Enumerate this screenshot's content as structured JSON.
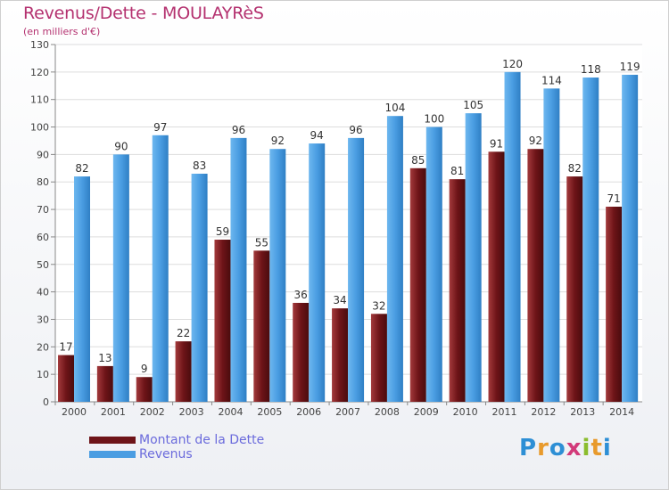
{
  "header": {
    "title": "Revenus/Dette - MOULAYRèS",
    "subtitle": "(en milliers d'€)"
  },
  "chart_data": {
    "type": "bar",
    "categories": [
      "2000",
      "2001",
      "2002",
      "2003",
      "2004",
      "2005",
      "2006",
      "2007",
      "2008",
      "2009",
      "2010",
      "2011",
      "2012",
      "2013",
      "2014"
    ],
    "series": [
      {
        "name": "Montant de la Dette",
        "color": "#6e1418",
        "values": [
          17,
          13,
          9,
          22,
          59,
          55,
          36,
          34,
          32,
          85,
          81,
          91,
          92,
          82,
          71
        ]
      },
      {
        "name": "Revenus",
        "color": "#4a9de2",
        "values": [
          82,
          90,
          97,
          83,
          96,
          92,
          94,
          96,
          104,
          100,
          105,
          120,
          114,
          118,
          119
        ]
      }
    ],
    "ylim": [
      0,
      130
    ],
    "yticks": [
      0,
      10,
      20,
      30,
      40,
      50,
      60,
      70,
      80,
      90,
      100,
      110,
      120,
      130
    ],
    "grid": true,
    "legend_position": "bottom-left"
  },
  "legend": {
    "items": [
      {
        "label": "Montant de la Dette",
        "color": "#6e1418"
      },
      {
        "label": "Revenus",
        "color": "#4a9de2"
      }
    ]
  },
  "logo": {
    "text": "Proxiti",
    "letter_colors": [
      "#2d8fd5",
      "#e89a2c",
      "#2d8fd5",
      "#d23a7a",
      "#8bbd2e",
      "#e89a2c",
      "#2d8fd5"
    ]
  }
}
